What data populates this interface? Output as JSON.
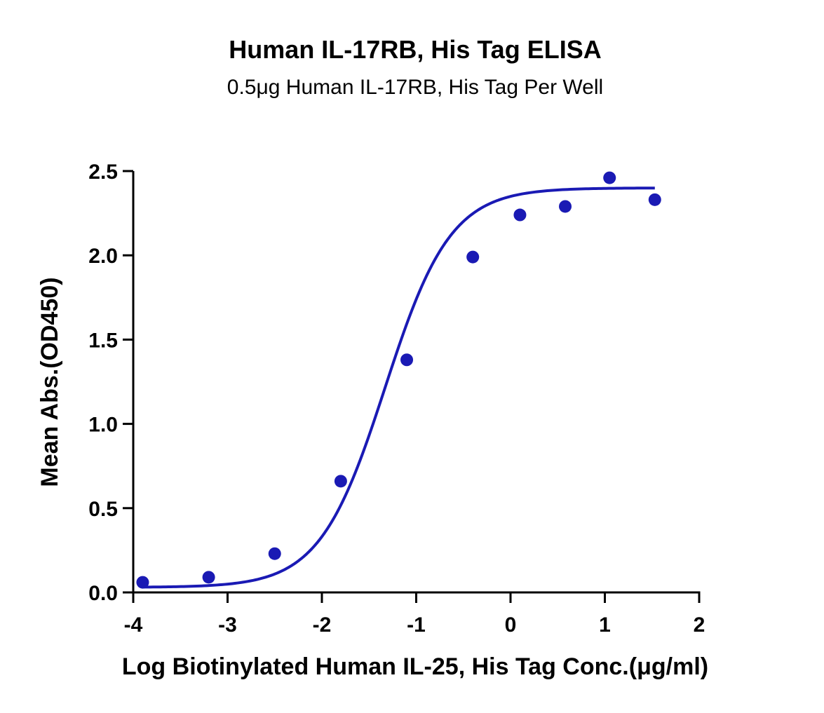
{
  "chart_data": {
    "type": "scatter",
    "title": "Human IL-17RB, His Tag ELISA",
    "subtitle": "0.5μg Human IL-17RB, His Tag Per Well",
    "xlabel": "Log Biotinylated Human IL-25, His Tag Conc.(μg/ml)",
    "ylabel": "Mean Abs.(OD450)",
    "xlim": [
      -4,
      2
    ],
    "ylim": [
      0,
      2.5
    ],
    "x_ticks": [
      "-4",
      "-3",
      "-2",
      "-1",
      "0",
      "1",
      "2"
    ],
    "y_ticks": [
      "0.0",
      "0.5",
      "1.0",
      "1.5",
      "2.0",
      "2.5"
    ],
    "grid": false,
    "color": "#1a1ab4",
    "series": [
      {
        "points": [
          {
            "x": -3.9,
            "y": 0.06
          },
          {
            "x": -3.2,
            "y": 0.09
          },
          {
            "x": -2.5,
            "y": 0.23
          },
          {
            "x": -1.8,
            "y": 0.66
          },
          {
            "x": -1.1,
            "y": 1.38
          },
          {
            "x": -0.4,
            "y": 1.99
          },
          {
            "x": 0.1,
            "y": 2.24
          },
          {
            "x": 0.58,
            "y": 2.29
          },
          {
            "x": 1.05,
            "y": 2.46
          },
          {
            "x": 1.53,
            "y": 2.33
          }
        ],
        "fit": {
          "model": "4PL",
          "bottom": 0.03,
          "top": 2.4,
          "logEC50": -1.33,
          "hill": 1.25,
          "x_range": [
            -3.9,
            1.53
          ]
        }
      }
    ]
  }
}
